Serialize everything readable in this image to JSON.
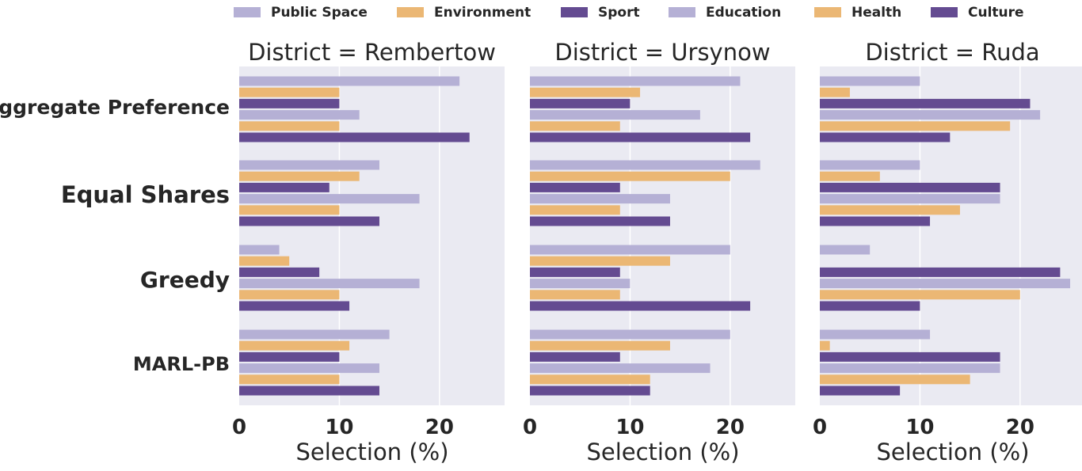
{
  "chart_data": {
    "type": "bar",
    "orientation": "horizontal",
    "facet_label": "District",
    "title_template": "District = {district}",
    "xlabel": "Selection (%)",
    "xlim": [
      0,
      26.5
    ],
    "xticks": [
      0,
      10,
      20
    ],
    "grid": true,
    "legend_position": "top",
    "legend": [
      {
        "name": "Public Space",
        "color": "#b5b0d5"
      },
      {
        "name": "Environment",
        "color": "#ebb774"
      },
      {
        "name": "Sport",
        "color": "#644b91"
      },
      {
        "name": "Education",
        "color": "#b5b0d5"
      },
      {
        "name": "Health",
        "color": "#ebb774"
      },
      {
        "name": "Culture",
        "color": "#644b91"
      }
    ],
    "methods": [
      "Aggregate Preference",
      "Equal Shares",
      "Greedy",
      "MARL-PB"
    ],
    "panels": [
      {
        "district": "Rembertow",
        "title": "District = Rembertow",
        "values": [
          [
            22,
            10,
            10,
            12,
            10,
            23
          ],
          [
            14,
            12,
            9,
            18,
            10,
            14
          ],
          [
            4,
            5,
            8,
            18,
            10,
            11
          ],
          [
            15,
            11,
            10,
            14,
            10,
            14
          ]
        ]
      },
      {
        "district": "Ursynow",
        "title": "District = Ursynow",
        "values": [
          [
            21,
            11,
            10,
            17,
            9,
            22
          ],
          [
            23,
            20,
            9,
            14,
            9,
            14
          ],
          [
            20,
            14,
            9,
            10,
            9,
            22
          ],
          [
            20,
            14,
            9,
            18,
            12,
            12
          ]
        ]
      },
      {
        "district": "Ruda",
        "title": "District = Ruda",
        "values": [
          [
            10,
            3,
            21,
            22,
            19,
            13
          ],
          [
            10,
            6,
            18,
            18,
            14,
            11
          ],
          [
            5,
            0,
            24,
            25,
            20,
            10
          ],
          [
            11,
            1,
            18,
            18,
            15,
            8
          ]
        ]
      }
    ]
  }
}
